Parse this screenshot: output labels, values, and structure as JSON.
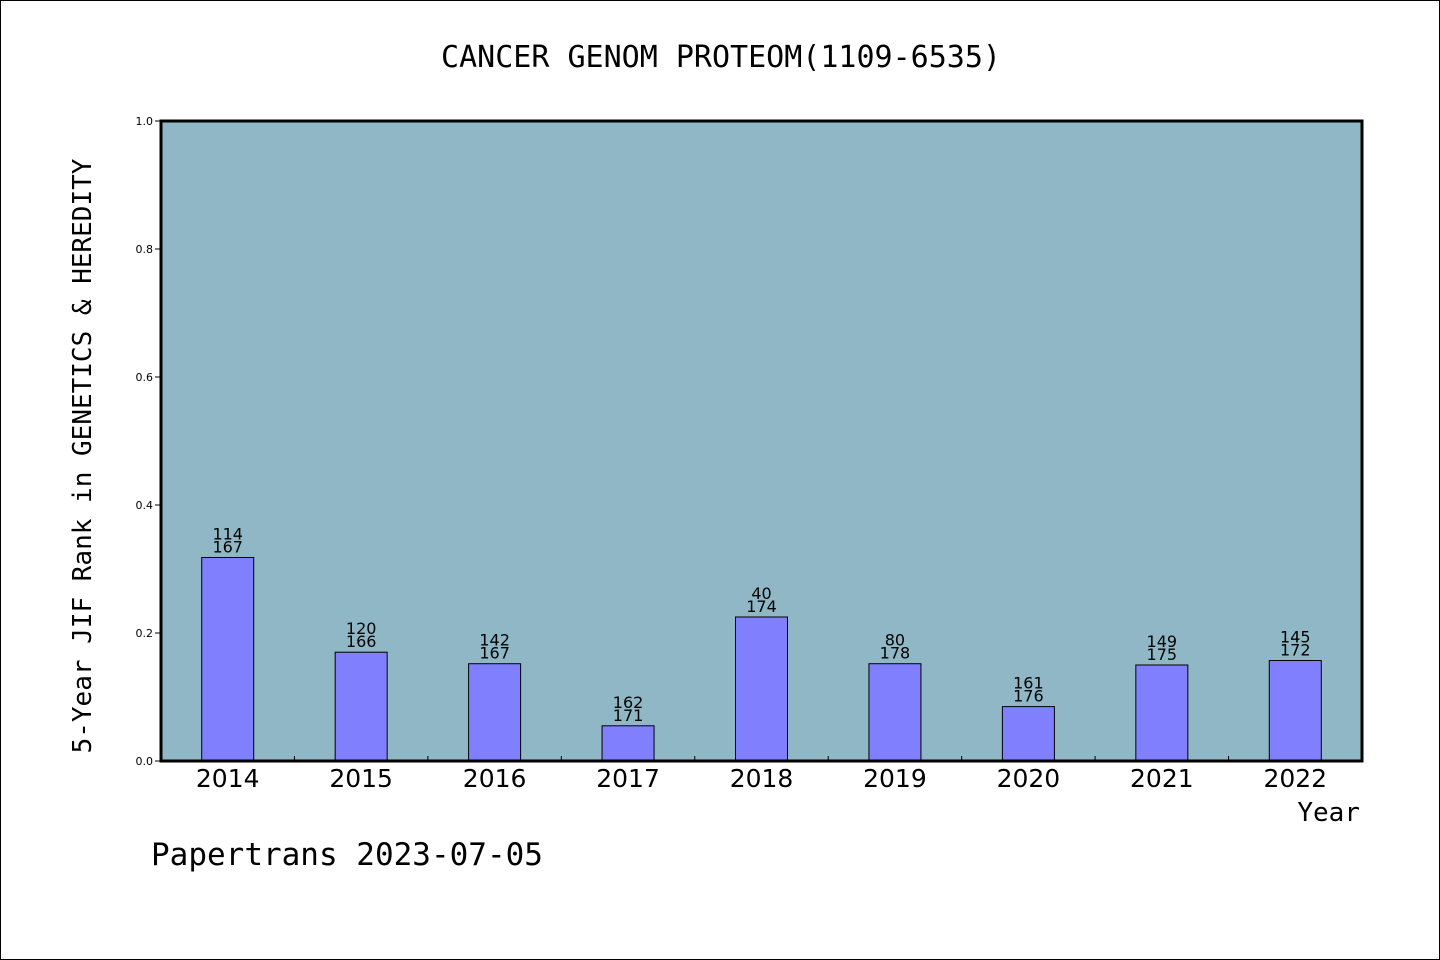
{
  "chart_data": {
    "type": "bar",
    "title": "CANCER GENOM PROTEOM(1109-6535)",
    "xlabel": "Year",
    "ylabel": "5-Year JIF Rank in GENETICS & HEREDITY",
    "ylim": [
      0,
      1.0
    ],
    "yticks": [
      "0.0",
      "0.2",
      "0.4",
      "0.6",
      "0.8",
      "1.0"
    ],
    "grid": false,
    "categories": [
      "2014",
      "2015",
      "2016",
      "2017",
      "2018",
      "2019",
      "2020",
      "2021",
      "2022"
    ],
    "values": [
      0.318,
      0.17,
      0.152,
      0.055,
      0.225,
      0.152,
      0.085,
      0.15,
      0.157
    ],
    "rank_labels": [
      "114",
      "120",
      "142",
      "162",
      "40",
      "80",
      "161",
      "149",
      "145"
    ],
    "total_labels": [
      "167",
      "166",
      "167",
      "171",
      "174",
      "178",
      "176",
      "175",
      "172"
    ],
    "colors": {
      "plot_background": "#8fb7c5",
      "bar_fill": "#8080ff",
      "bar_stroke": "#000000"
    }
  },
  "footer": {
    "text": "Papertrans 2023-07-05"
  }
}
